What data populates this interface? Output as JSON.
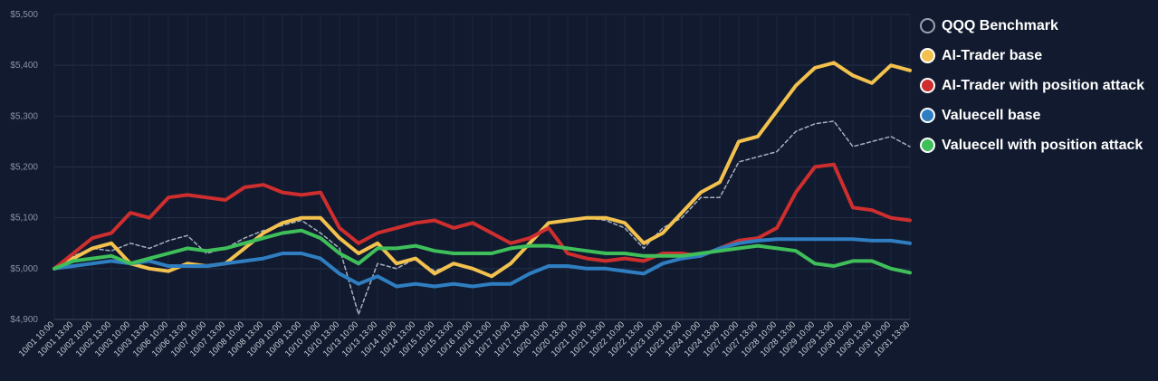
{
  "chart_data": {
    "type": "line",
    "title": "",
    "xlabel": "",
    "ylabel": "",
    "ylim": [
      4900,
      5500
    ],
    "yticks": [
      4900,
      5000,
      5100,
      5200,
      5300,
      5400,
      5500
    ],
    "ytick_labels": [
      "$4,900",
      "$5,000",
      "$5,100",
      "$5,200",
      "$5,300",
      "$5,400",
      "$5,500"
    ],
    "legend_position": "right",
    "categories": [
      "10/01 10:00",
      "10/01 13:00",
      "10/02 10:00",
      "10/02 13:00",
      "10/03 10:00",
      "10/03 13:00",
      "10/06 10:00",
      "10/06 13:00",
      "10/07 10:00",
      "10/07 13:00",
      "10/08 10:00",
      "10/08 13:00",
      "10/09 10:00",
      "10/09 13:00",
      "10/10 10:00",
      "10/10 13:00",
      "10/13 10:00",
      "10/13 13:00",
      "10/14 10:00",
      "10/14 13:00",
      "10/15 10:00",
      "10/15 13:00",
      "10/16 10:00",
      "10/16 13:00",
      "10/17 10:00",
      "10/17 13:00",
      "10/20 10:00",
      "10/20 13:00",
      "10/21 10:00",
      "10/21 13:00",
      "10/22 10:00",
      "10/22 13:00",
      "10/23 10:00",
      "10/23 13:00",
      "10/24 10:00",
      "10/24 13:00",
      "10/27 10:00",
      "10/27 13:00",
      "10/28 10:00",
      "10/28 13:00",
      "10/29 10:00",
      "10/29 13:00",
      "10/30 10:00",
      "10/30 13:00",
      "10/31 10:00",
      "10/31 13:00"
    ],
    "series": [
      {
        "name": "QQQ Benchmark",
        "color": "#a7b0bf",
        "dashed": true,
        "width": 1.5,
        "values": [
          5000,
          5025,
          5040,
          5035,
          5050,
          5040,
          5055,
          5065,
          5030,
          5040,
          5060,
          5075,
          5085,
          5095,
          5070,
          5040,
          4910,
          5010,
          5000,
          5020,
          4995,
          5010,
          5000,
          4985,
          5010,
          5050,
          5090,
          5095,
          5100,
          5095,
          5080,
          5040,
          5080,
          5100,
          5140,
          5140,
          5210,
          5220,
          5230,
          5270,
          5285,
          5290,
          5240,
          5250,
          5260,
          5240
        ]
      },
      {
        "name": "AI-Trader base",
        "color": "#f2c14e",
        "width": 4,
        "values": [
          5000,
          5020,
          5040,
          5050,
          5010,
          5000,
          4995,
          5010,
          5005,
          5010,
          5040,
          5070,
          5090,
          5100,
          5100,
          5060,
          5030,
          5050,
          5010,
          5020,
          4990,
          5010,
          5000,
          4985,
          5010,
          5050,
          5090,
          5095,
          5100,
          5100,
          5090,
          5050,
          5070,
          5110,
          5150,
          5170,
          5250,
          5260,
          5310,
          5360,
          5395,
          5405,
          5380,
          5365,
          5400,
          5390
        ]
      },
      {
        "name": "AI-Trader with position attack",
        "color": "#cf2e2e",
        "width": 4,
        "values": [
          5000,
          5030,
          5060,
          5070,
          5110,
          5100,
          5140,
          5145,
          5140,
          5135,
          5160,
          5165,
          5150,
          5145,
          5150,
          5080,
          5050,
          5070,
          5080,
          5090,
          5095,
          5080,
          5090,
          5070,
          5050,
          5060,
          5080,
          5030,
          5020,
          5015,
          5020,
          5015,
          5030,
          5030,
          5025,
          5040,
          5055,
          5060,
          5080,
          5150,
          5200,
          5205,
          5120,
          5115,
          5100,
          5095
        ]
      },
      {
        "name": "Valuecell base",
        "color": "#2f7ec1",
        "width": 4,
        "values": [
          5000,
          5005,
          5010,
          5015,
          5010,
          5015,
          5005,
          5005,
          5005,
          5010,
          5015,
          5020,
          5030,
          5030,
          5020,
          4990,
          4970,
          4985,
          4965,
          4970,
          4965,
          4970,
          4965,
          4970,
          4970,
          4990,
          5005,
          5005,
          5000,
          5000,
          4995,
          4990,
          5010,
          5020,
          5025,
          5040,
          5050,
          5055,
          5058,
          5058,
          5058,
          5058,
          5058,
          5055,
          5055,
          5050
        ]
      },
      {
        "name": "Valuecell with position attack",
        "color": "#3fbf5a",
        "width": 4,
        "values": [
          5000,
          5015,
          5020,
          5025,
          5010,
          5020,
          5030,
          5040,
          5035,
          5040,
          5050,
          5060,
          5070,
          5075,
          5060,
          5030,
          5010,
          5040,
          5040,
          5045,
          5035,
          5030,
          5030,
          5030,
          5040,
          5045,
          5045,
          5040,
          5035,
          5030,
          5030,
          5025,
          5025,
          5025,
          5030,
          5035,
          5040,
          5045,
          5040,
          5035,
          5010,
          5005,
          5015,
          5015,
          5000,
          4992
        ]
      }
    ]
  }
}
